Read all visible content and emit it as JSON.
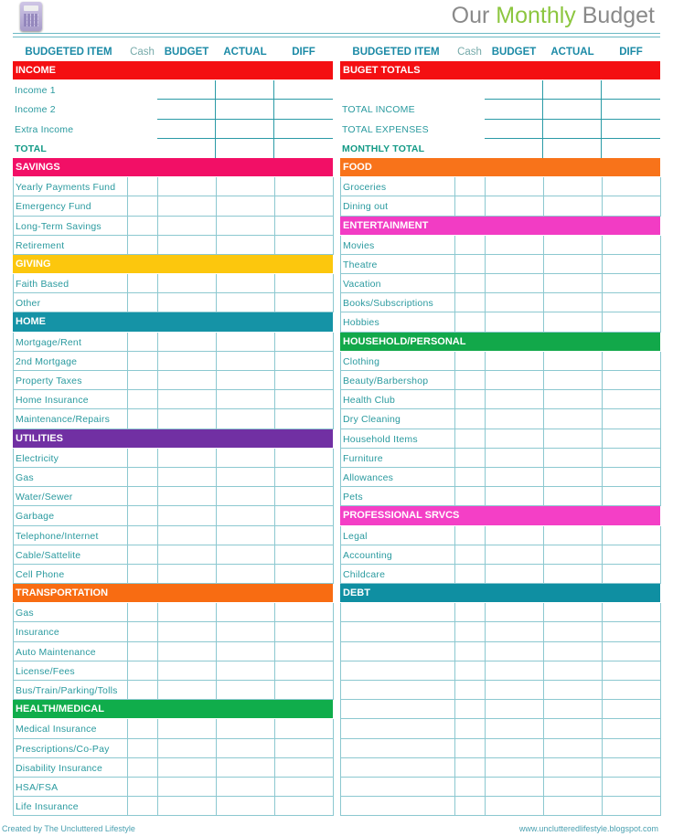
{
  "header": {
    "title_pre": "Our ",
    "title_accent": "Monthly",
    "title_post": " Budget",
    "logo_icon": "calculator-icon"
  },
  "columns": {
    "item": "BUDGETED ITEM",
    "cash": "Cash",
    "budget": "BUDGET",
    "actual": "ACTUAL",
    "diff": "DIFF"
  },
  "left": [
    {
      "title": "INCOME",
      "color": "#f40f12",
      "special": true,
      "items": [
        "Income 1",
        "Income 2",
        "Extra Income"
      ],
      "total": "TOTAL"
    },
    {
      "title": "SAVINGS",
      "color": "#f20f66",
      "items": [
        "Yearly Payments Fund",
        "Emergency Fund",
        "Long-Term Savings",
        "Retirement"
      ]
    },
    {
      "title": "GIVING",
      "color": "#fcc70d",
      "items": [
        "Faith Based",
        "Other"
      ]
    },
    {
      "title": "HOME",
      "color": "#1593a6",
      "items": [
        "Mortgage/Rent",
        "2nd Mortgage",
        "Property Taxes",
        "Home Insurance",
        "Maintenance/Repairs"
      ]
    },
    {
      "title": "UTILITIES",
      "color": "#7130a3",
      "items": [
        "Electricity",
        "Gas",
        "Water/Sewer",
        "Garbage",
        "Telephone/Internet",
        "Cable/Sattelite",
        "Cell Phone"
      ]
    },
    {
      "title": "TRANSPORTATION",
      "color": "#f86c12",
      "items": [
        "Gas",
        "Insurance",
        "Auto Maintenance",
        "License/Fees",
        "Bus/Train/Parking/Tolls"
      ]
    },
    {
      "title": "HEALTH/MEDICAL",
      "color": "#10ad4b",
      "items": [
        "Medical Insurance",
        "Prescriptions/Co-Pay",
        "Disability Insurance",
        "HSA/FSA",
        "Life Insurance"
      ]
    }
  ],
  "right": [
    {
      "title": "BUGET TOTALS",
      "color": "#f40f12",
      "special": true,
      "items": [
        "",
        "TOTAL INCOME",
        "TOTAL EXPENSES"
      ],
      "total": "MONTHLY TOTAL"
    },
    {
      "title": "FOOD",
      "color": "#f8731a",
      "items": [
        "Groceries",
        "Dining out"
      ]
    },
    {
      "title": "ENTERTAINMENT",
      "color": "#f23cc4",
      "items": [
        "Movies",
        "Theatre",
        "Vacation",
        "Books/Subscriptions",
        "Hobbies"
      ]
    },
    {
      "title": "HOUSEHOLD/PERSONAL",
      "color": "#12a84a",
      "items": [
        "Clothing",
        "Beauty/Barbershop",
        "Health Club",
        "Dry Cleaning",
        "Household Items",
        "Furniture",
        "Allowances",
        "Pets"
      ]
    },
    {
      "title": "PROFESSIONAL SRVCS",
      "color": "#f43fc6",
      "items": [
        "Legal",
        "Accounting",
        "Childcare"
      ]
    },
    {
      "title": "DEBT",
      "color": "#0f8fa2",
      "items": [
        "",
        "",
        "",
        "",
        "",
        "",
        "",
        "",
        "",
        "",
        ""
      ]
    }
  ],
  "footer": {
    "left": "Created by The Uncluttered Lifestyle",
    "right": "www.unclutteredlifestyle.blogspot.com"
  }
}
